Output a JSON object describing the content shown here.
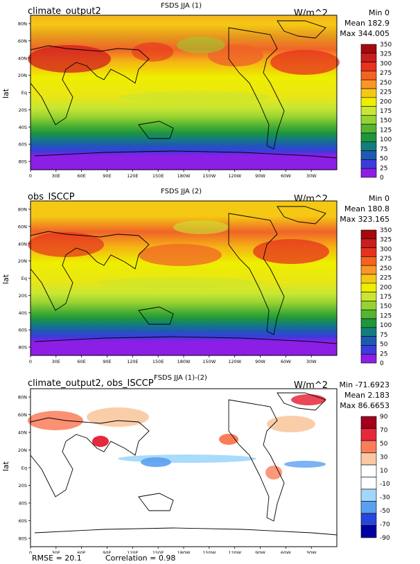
{
  "panels": [
    {
      "left_title": "climate_output2",
      "center_title": "FSDS JJA (1)",
      "units": "W/m^2",
      "stats": [
        "Min 0",
        "Mean 182.9",
        "Max 344.005"
      ],
      "ylabel": "lat",
      "colorbar_labels": [
        "350",
        "325",
        "300",
        "275",
        "250",
        "225",
        "200",
        "175",
        "150",
        "125",
        "100",
        "75",
        "50",
        "25",
        "0"
      ],
      "colorbar_colors": [
        "#a50a0a",
        "#c81e1e",
        "#e6321e",
        "#f5641e",
        "#fa9628",
        "#f5c814",
        "#eeee00",
        "#c8e632",
        "#96d232",
        "#55b432",
        "#1e963c",
        "#147d7d",
        "#1e5ab4",
        "#3c3cdc",
        "#8c1ee6"
      ]
    },
    {
      "left_title": "obs_ISCCP",
      "center_title": "FSDS JJA (2)",
      "units": "W/m^2",
      "stats": [
        "Min 0",
        "Mean 180.8",
        "Max 323.165"
      ],
      "ylabel": "lat",
      "colorbar_labels": [
        "350",
        "325",
        "300",
        "275",
        "250",
        "225",
        "200",
        "175",
        "150",
        "125",
        "100",
        "75",
        "50",
        "25",
        "0"
      ],
      "colorbar_colors": [
        "#a50a0a",
        "#c81e1e",
        "#e6321e",
        "#f5641e",
        "#fa9628",
        "#f5c814",
        "#eeee00",
        "#c8e632",
        "#96d232",
        "#55b432",
        "#1e963c",
        "#147d7d",
        "#1e5ab4",
        "#3c3cdc",
        "#8c1ee6"
      ]
    },
    {
      "left_title": "climate_output2, obs_ISCCP",
      "center_title": "FSDS JJA (1)-(2)",
      "units": "W/m^2",
      "stats": [
        "Min -71.6923",
        "Mean 2.183",
        "Max 86.6653"
      ],
      "ylabel": "lat",
      "colorbar_labels": [
        "90",
        "70",
        "50",
        "30",
        "10",
        "-10",
        "-30",
        "-50",
        "-70",
        "-90"
      ],
      "colorbar_colors": [
        "#a0001e",
        "#e6283c",
        "#fa7d5a",
        "#fac8a0",
        "#ffffff",
        "#ffffff",
        "#a0d7fa",
        "#5aa0f0",
        "#2846dc",
        "#0000a0"
      ]
    }
  ],
  "lat_ticks": [
    "80N",
    "60N",
    "40N",
    "20N",
    "Eq",
    "20S",
    "40S",
    "60S",
    "80S"
  ],
  "lon_ticks": [
    "0",
    "30E",
    "60E",
    "90E",
    "120E",
    "150E",
    "180W",
    "150W",
    "120W",
    "90W",
    "60W",
    "30W"
  ],
  "footer": {
    "rmse": "RMSE = 20.1",
    "correlation": "Correlation = 0.98"
  },
  "chart_data": [
    {
      "type": "heatmap",
      "title": "FSDS JJA (1)",
      "subtitle": "climate_output2",
      "units": "W/m^2",
      "xlabel": "",
      "ylabel": "lat",
      "x": [
        "0",
        "30E",
        "60E",
        "90E",
        "120E",
        "150E",
        "180W",
        "150W",
        "120W",
        "90W",
        "60W",
        "30W"
      ],
      "y": [
        "80N",
        "60N",
        "40N",
        "20N",
        "Eq",
        "20S",
        "40S",
        "60S",
        "80S"
      ],
      "zmin": 0,
      "zmean": 182.9,
      "zmax": 344.005,
      "levels": [
        0,
        25,
        50,
        75,
        100,
        125,
        150,
        175,
        200,
        225,
        250,
        275,
        300,
        325,
        350
      ],
      "zonal_mean_profile": {
        "lat": [
          80,
          60,
          40,
          20,
          0,
          -20,
          -40,
          -60,
          -80
        ],
        "value": [
          290,
          230,
          290,
          260,
          210,
          200,
          120,
          20,
          0
        ]
      }
    },
    {
      "type": "heatmap",
      "title": "FSDS JJA (2)",
      "subtitle": "obs_ISCCP",
      "units": "W/m^2",
      "xlabel": "",
      "ylabel": "lat",
      "x": [
        "0",
        "30E",
        "60E",
        "90E",
        "120E",
        "150E",
        "180W",
        "150W",
        "120W",
        "90W",
        "60W",
        "30W"
      ],
      "y": [
        "80N",
        "60N",
        "40N",
        "20N",
        "Eq",
        "20S",
        "40S",
        "60S",
        "80S"
      ],
      "zmin": 0,
      "zmean": 180.8,
      "zmax": 323.165,
      "levels": [
        0,
        25,
        50,
        75,
        100,
        125,
        150,
        175,
        200,
        225,
        250,
        275,
        300,
        325,
        350
      ],
      "zonal_mean_profile": {
        "lat": [
          80,
          60,
          40,
          20,
          0,
          -20,
          -40,
          -60,
          -80
        ],
        "value": [
          240,
          210,
          270,
          270,
          220,
          210,
          130,
          30,
          0
        ]
      }
    },
    {
      "type": "heatmap",
      "title": "FSDS JJA (1)-(2)",
      "subtitle": "climate_output2, obs_ISCCP",
      "units": "W/m^2",
      "xlabel": "",
      "ylabel": "lat",
      "x": [
        "0",
        "30E",
        "60E",
        "90E",
        "120E",
        "150E",
        "180W",
        "150W",
        "120W",
        "90W",
        "60W",
        "30W"
      ],
      "y": [
        "80N",
        "60N",
        "40N",
        "20N",
        "Eq",
        "20S",
        "40S",
        "60S",
        "80S"
      ],
      "zmin": -71.6923,
      "zmean": 2.183,
      "zmax": 86.6653,
      "levels": [
        -90,
        -70,
        -50,
        -30,
        -10,
        10,
        30,
        50,
        70,
        90
      ],
      "rmse": 20.1,
      "correlation": 0.98
    }
  ]
}
